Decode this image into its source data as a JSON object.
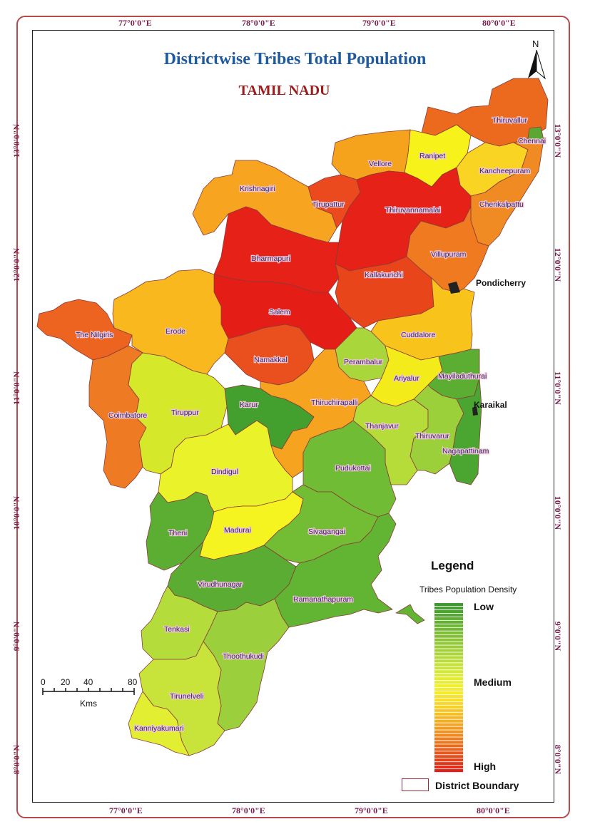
{
  "title": "Districtwise Tribes Total Population",
  "subtitle": "TAMIL NADU",
  "graticule": {
    "top": [
      "77°0'0\"E",
      "78°0'0\"E",
      "79°0'0\"E",
      "80°0'0\"E"
    ],
    "bottom": [
      "77°0'0\"E",
      "78°0'0\"E",
      "79°0'0\"E",
      "80°0'0\"E"
    ],
    "left": [
      "13°0'0\"N",
      "12°0'0\"N",
      "11°0'0\"N",
      "10°0'0\"N",
      "9°0'0\"N",
      "8°0'0\"N"
    ],
    "right": [
      "13°0'0\"N",
      "12°0'0\"N",
      "11°0'0\"N",
      "10°0'0\"N",
      "9°0'0\"N",
      "8°0'0\"N"
    ]
  },
  "north_arrow": "N",
  "places": {
    "pondicherry": "Pondicherry",
    "karaikal": "Karaikal"
  },
  "districts": [
    {
      "id": "thiruvallur",
      "name": "Thiruvallur",
      "level": "high-mid",
      "color": "#ec6a1e"
    },
    {
      "id": "chennai",
      "name": "Chennai",
      "level": "low",
      "color": "#5aa832"
    },
    {
      "id": "ranipet",
      "name": "Ranipet",
      "level": "medium",
      "color": "#f6f21a"
    },
    {
      "id": "vellore",
      "name": "Vellore",
      "level": "mid-high",
      "color": "#f5a21d"
    },
    {
      "id": "kancheepuram",
      "name": "Kancheepuram",
      "level": "medium",
      "color": "#f9d423"
    },
    {
      "id": "chenkalpattu",
      "name": "Chenkalpattu",
      "level": "high-mid",
      "color": "#f08a22"
    },
    {
      "id": "krishnagiri",
      "name": "Krishnagiri",
      "level": "mid-high",
      "color": "#f7a521"
    },
    {
      "id": "tirupattur",
      "name": "Tirupattur",
      "level": "high",
      "color": "#ea4a1e"
    },
    {
      "id": "thiruvannamalai",
      "name": "Thiruvannamalai",
      "level": "high",
      "color": "#e62117"
    },
    {
      "id": "dharmapuri",
      "name": "Dharmapuri",
      "level": "high",
      "color": "#e62117"
    },
    {
      "id": "villupuram",
      "name": "Villupuram",
      "level": "high-mid",
      "color": "#ef7a20"
    },
    {
      "id": "kallakurichi",
      "name": "Kallakurichi",
      "level": "high",
      "color": "#e8451b"
    },
    {
      "id": "salem",
      "name": "Salem",
      "level": "high",
      "color": "#e41e17"
    },
    {
      "id": "the-nilgiris",
      "name": "The Nilgiris",
      "level": "high-mid",
      "color": "#ec6420"
    },
    {
      "id": "erode",
      "name": "Erode",
      "level": "mid-high",
      "color": "#f9b91e"
    },
    {
      "id": "cuddalore",
      "name": "Cuddalore",
      "level": "mid-high",
      "color": "#f8c41c"
    },
    {
      "id": "namakkal",
      "name": "Namakkal",
      "level": "high",
      "color": "#ea501d"
    },
    {
      "id": "perambalur",
      "name": "Perambalur",
      "level": "low-mid",
      "color": "#a9d63a"
    },
    {
      "id": "ariyalur",
      "name": "Ariyalur",
      "level": "medium",
      "color": "#f4ec1a"
    },
    {
      "id": "mayiladuthurai",
      "name": "Mayiladuthurai",
      "level": "low",
      "color": "#5cae32"
    },
    {
      "id": "coimbatore",
      "name": "Coimbatore",
      "level": "high-mid",
      "color": "#ee7a24"
    },
    {
      "id": "tiruppur",
      "name": "Tiruppur",
      "level": "low-mid",
      "color": "#d6e82a"
    },
    {
      "id": "karur",
      "name": "Karur",
      "level": "low",
      "color": "#44a02e"
    },
    {
      "id": "thiruchirapalli",
      "name": "Thiruchirapalli",
      "level": "mid-high",
      "color": "#f6a420"
    },
    {
      "id": "thanjavur",
      "name": "Thanjavur",
      "level": "low-mid",
      "color": "#b5dc38"
    },
    {
      "id": "thiruvarur",
      "name": "Thiruvarur",
      "level": "low-mid",
      "color": "#9bd03a"
    },
    {
      "id": "nagapattinam",
      "name": "Nagapattinam",
      "level": "low",
      "color": "#4aa630"
    },
    {
      "id": "dindigul",
      "name": "Dindigul",
      "level": "medium",
      "color": "#eaf22a"
    },
    {
      "id": "pudukottai",
      "name": "Pudukottai",
      "level": "low",
      "color": "#70bc34"
    },
    {
      "id": "theni",
      "name": "Theni",
      "level": "low",
      "color": "#5cae32"
    },
    {
      "id": "madurai",
      "name": "Madurai",
      "level": "medium",
      "color": "#f6f420"
    },
    {
      "id": "sivagangai",
      "name": "Sivagangai",
      "level": "low",
      "color": "#72bd34"
    },
    {
      "id": "virudhunagar",
      "name": "Virudhunagar",
      "level": "low",
      "color": "#5aac32"
    },
    {
      "id": "ramanathapuram",
      "name": "Ramanathapuram",
      "level": "low",
      "color": "#62b433"
    },
    {
      "id": "tenkasi",
      "name": "Tenkasi",
      "level": "low-mid",
      "color": "#b4dc3a"
    },
    {
      "id": "thoothukudi",
      "name": "Thoothukudi",
      "level": "low-mid",
      "color": "#9ccf3c"
    },
    {
      "id": "tirunelveli",
      "name": "Tirunelveli",
      "level": "low-mid",
      "color": "#c8e43a"
    },
    {
      "id": "kanniyakumari",
      "name": "Kanniyakumari",
      "level": "medium",
      "color": "#e2ee32"
    }
  ],
  "legend": {
    "title": "Legend",
    "subtitle": "Tribes Population Density",
    "low": "Low",
    "medium": "Medium",
    "high": "High",
    "boundary": "District Boundary",
    "ramp_colors": [
      "#3e9a2e",
      "#5aab30",
      "#79bc33",
      "#99cc36",
      "#b9dc38",
      "#d9ea36",
      "#f3f12a",
      "#f9dc26",
      "#f6bc22",
      "#f19a20",
      "#ec741e",
      "#e74a1a",
      "#e22017"
    ]
  },
  "scale_bar": {
    "ticks": [
      "0",
      "20",
      "40",
      "80"
    ],
    "unit": "Kms"
  }
}
